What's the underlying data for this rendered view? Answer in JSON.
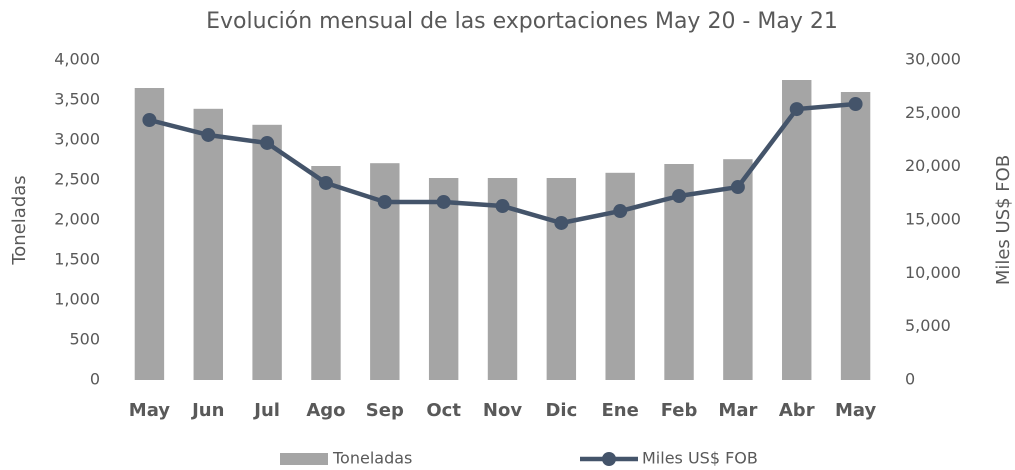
{
  "chart_data": {
    "type": "bar-line",
    "title": "Evolución mensual de las exportaciones May 20 - May 21",
    "ylabel": "Toneladas",
    "y2label": "Miles US$ FOB",
    "categories": [
      "May",
      "Jun",
      "Jul",
      "Ago",
      "Sep",
      "Oct",
      "Nov",
      "Dic",
      "Ene",
      "Feb",
      "Mar",
      "Abr",
      "May"
    ],
    "series": [
      {
        "name": "Toneladas",
        "type": "bar",
        "color": "#a5a5a5",
        "values": [
          3650,
          3390,
          3190,
          2675,
          2710,
          2525,
          2525,
          2525,
          2590,
          2700,
          2760,
          3750,
          3600
        ]
      },
      {
        "name": "Miles US$ FOB",
        "type": "line",
        "axis": "y2",
        "color": "#44546a",
        "values": [
          24375,
          22970,
          22220,
          18470,
          16690,
          16690,
          16310,
          14720,
          15840,
          17250,
          18090,
          25400,
          25875
        ]
      }
    ],
    "ylim": [
      0,
      4000
    ],
    "yticks": [
      0,
      500,
      {
        "value": 1000,
        "label": "1,000"
      },
      {
        "value": 1500,
        "label": "1,500"
      },
      {
        "value": 2000,
        "label": "2,000"
      },
      {
        "value": 2500,
        "label": "2,500"
      },
      {
        "value": 3000,
        "label": "3,000"
      },
      {
        "value": 3500,
        "label": "3,500"
      },
      {
        "value": 4000,
        "label": "4,000"
      }
    ],
    "y2lim": [
      0,
      30000
    ],
    "y2ticks": [
      0,
      {
        "value": 5000,
        "label": "5,000"
      },
      {
        "value": 10000,
        "label": "10,000"
      },
      {
        "value": 15000,
        "label": "15,000"
      },
      {
        "value": 20000,
        "label": "20,000"
      },
      {
        "value": 25000,
        "label": "25,000"
      },
      {
        "value": 30000,
        "label": "30,000"
      }
    ],
    "legend": "bottom"
  }
}
